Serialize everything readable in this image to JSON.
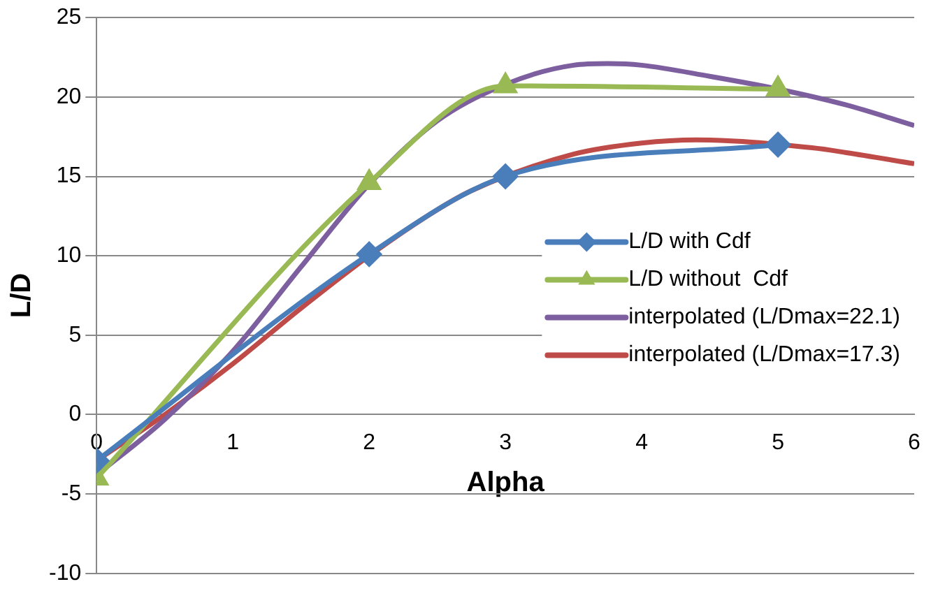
{
  "chart_data": {
    "type": "line",
    "xlabel": "Alpha",
    "ylabel": "L/D",
    "xlim": [
      0,
      6
    ],
    "xticks": [
      0,
      1,
      2,
      3,
      4,
      5,
      6
    ],
    "ylim": [
      -10,
      25
    ],
    "yticks": [
      -10,
      -5,
      0,
      5,
      10,
      15,
      20,
      25
    ],
    "grid": "y",
    "legend": "right",
    "series": [
      {
        "name": "L/D with Cdf",
        "color": "#4a7ebb",
        "marker": "diamond",
        "x": [
          0,
          2,
          3,
          5
        ],
        "values": [
          -2.9,
          10.1,
          15,
          17
        ]
      },
      {
        "name": "L/D without  Cdf",
        "color": "#98b954",
        "marker": "triangle",
        "x": [
          0,
          2,
          3,
          5
        ],
        "values": [
          -4,
          14.6,
          20.7,
          20.5
        ]
      },
      {
        "name": "interpolated (L/Dmax=22.1)",
        "color": "#7d5fa0",
        "marker": "none",
        "x": [
          0,
          0.5,
          1,
          1.5,
          2,
          2.5,
          3,
          3.5,
          3.75,
          4,
          4.5,
          5,
          5.5,
          6
        ],
        "values": [
          -3.8,
          -0.3,
          4,
          9.3,
          14.5,
          18.5,
          20.8,
          22,
          22.1,
          22,
          21.3,
          20.5,
          19.5,
          18.2
        ]
      },
      {
        "name": "interpolated (L/Dmax=17.3)",
        "color": "#be4b48",
        "marker": "none",
        "x": [
          0,
          0.5,
          1,
          1.5,
          2,
          2.5,
          2.75,
          3.5,
          4,
          4.4,
          5.25,
          5.5,
          6
        ],
        "values": [
          -2.9,
          0,
          3.2,
          6.7,
          10,
          12.9,
          14.1,
          16.4,
          17.1,
          17.3,
          16.8,
          16.5,
          15.8
        ]
      }
    ]
  }
}
